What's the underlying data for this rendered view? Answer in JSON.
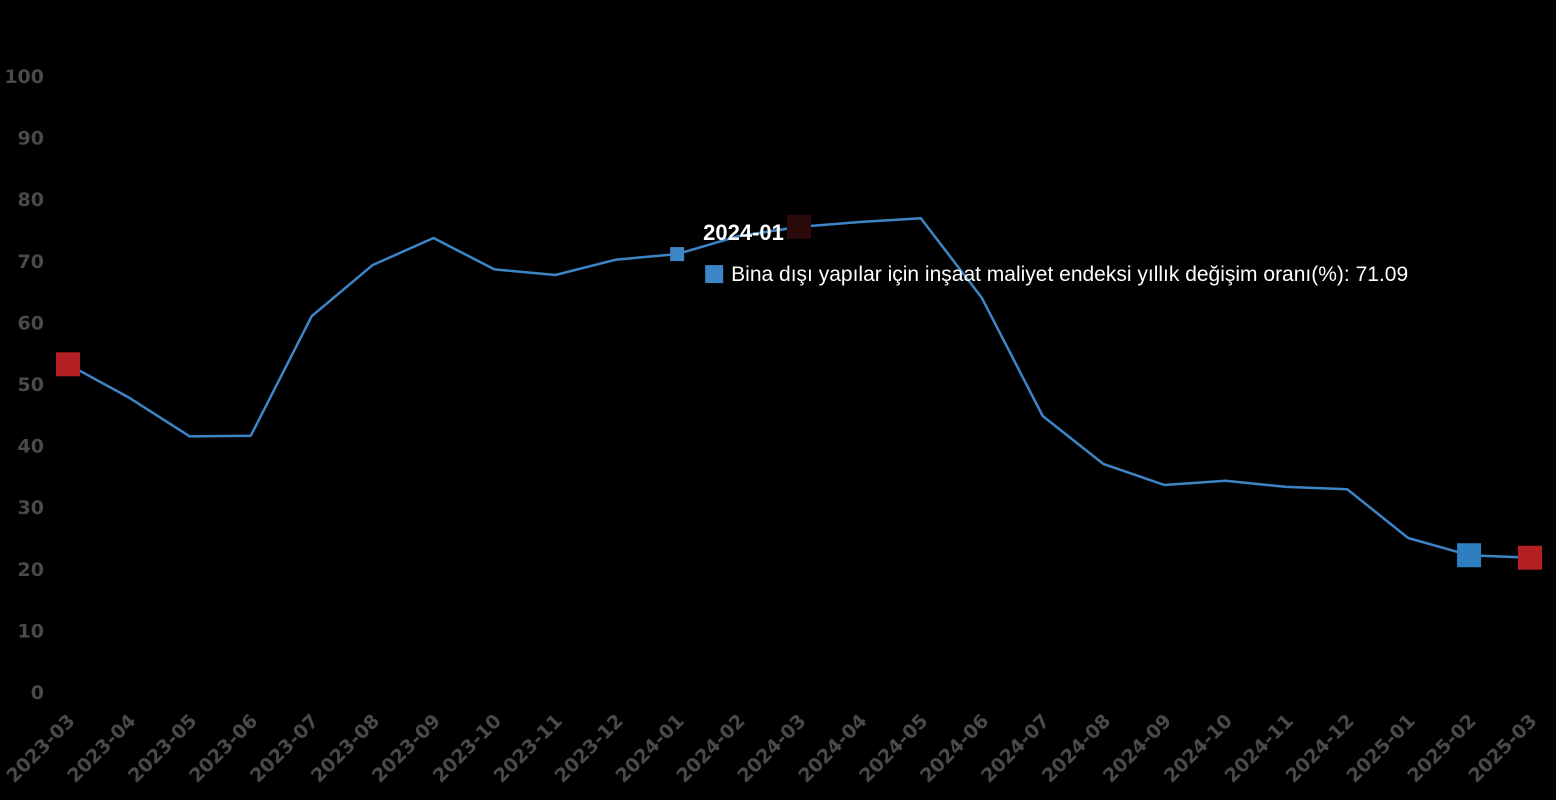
{
  "chart_data": {
    "type": "line",
    "title": "",
    "xlabel": "",
    "ylabel": "",
    "ylim": [
      0,
      100
    ],
    "yticks": [
      "0",
      "10",
      "20",
      "30",
      "40",
      "50",
      "60",
      "70",
      "80",
      "90",
      "100"
    ],
    "categories": [
      "2023-03",
      "2023-04",
      "2023-05",
      "2023-06",
      "2023-07",
      "2023-08",
      "2023-09",
      "2023-10",
      "2023-11",
      "2023-12",
      "2024-01",
      "2024-02",
      "2024-03",
      "2024-04",
      "2024-05",
      "2024-06",
      "2024-07",
      "2024-08",
      "2024-09",
      "2024-10",
      "2024-11",
      "2024-12",
      "2025-01",
      "2025-02",
      "2025-03"
    ],
    "series": [
      {
        "name": "Bina dışı yapılar için inşaat maliyet endeksi yıllık değişim oranı(%)",
        "color": "#3d85c6",
        "values": [
          53.2,
          47.8,
          41.5,
          41.6,
          61.0,
          69.3,
          73.7,
          68.6,
          67.7,
          70.2,
          71.09,
          74.0,
          75.5,
          76.3,
          76.9,
          64.0,
          44.8,
          37.0,
          33.6,
          34.3,
          33.3,
          32.9,
          25.0,
          22.2,
          21.8
        ]
      }
    ],
    "highlight_markers": [
      {
        "category": "2023-03",
        "value": 53.2,
        "color": "#b41f24"
      },
      {
        "category": "2024-03",
        "value": 75.5,
        "color": "#2a0a0a"
      },
      {
        "category": "2025-02",
        "value": 22.2,
        "color": "#2e7fc1"
      },
      {
        "category": "2025-03",
        "value": 21.8,
        "color": "#b41f24"
      }
    ],
    "tooltip": {
      "title": "2024-01",
      "category": "2024-01",
      "series_label": "Bina dışı yapılar için inşaat maliyet endeksi yıllık değişim oranı(%)",
      "value_text": "71.09",
      "marker_color": "#3d85c6"
    },
    "grid": false,
    "legend": "none"
  }
}
